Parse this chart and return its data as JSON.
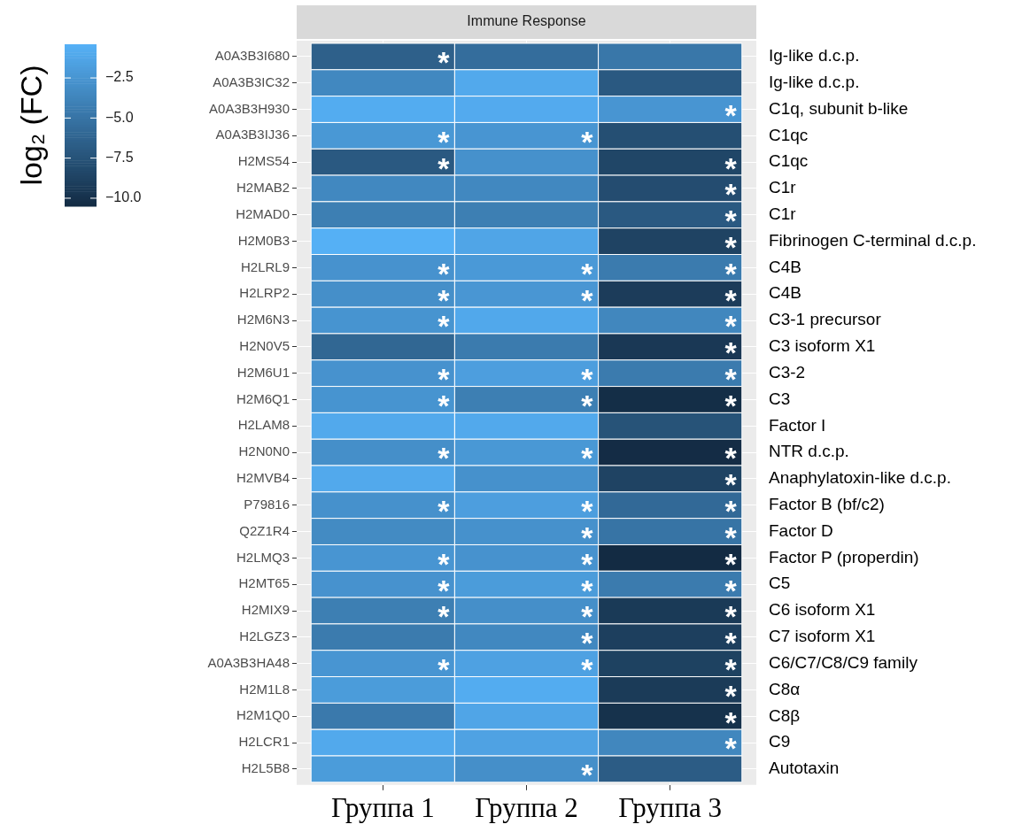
{
  "chart_data": {
    "type": "heatmap",
    "grid": true,
    "title": "Immune Response",
    "clabel": "log₂ (FC)",
    "categories": [
      "Группа 1",
      "Группа 2",
      "Группа 3"
    ],
    "y_categories": [
      "A0A3B3I680",
      "A0A3B3IC32",
      "A0A3B3H930",
      "A0A3B3IJ36",
      "H2MS54",
      "H2MAB2",
      "H2MAD0",
      "H2M0B3",
      "H2LRL9",
      "H2LRP2",
      "H2M6N3",
      "H2N0V5",
      "H2M6U1",
      "H2M6Q1",
      "H2LAM8",
      "H2N0N0",
      "H2MVB4",
      "P79816",
      "Q2Z1R4",
      "H2LMQ3",
      "H2MT65",
      "H2MIX9",
      "H2LGZ3",
      "A0A3B3HA48",
      "H2M1L8",
      "H2M1Q0",
      "H2LCR1",
      "H2L5B8"
    ],
    "y2_categories": [
      "Ig-like d.c.p.",
      "Ig-like d.c.p.",
      "C1q, subunit b-like",
      "C1qc",
      "C1qc",
      "C1r",
      "C1r",
      "Fibrinogen C-terminal d.c.p.",
      "C4B",
      "C4B",
      "C3-1 precursor",
      "C3 isoform X1",
      "C3-2",
      "C3",
      "Factor I",
      "NTR d.c.p.",
      "Anaphylatoxin-like d.c.p.",
      "Factor B (bf/c2)",
      "Factor D",
      "Factor P (properdin)",
      "C5",
      "C6 isoform X1",
      "C7 isoform X1",
      "C6/C7/C8/C9 family",
      "C8α",
      "C8β",
      "C9",
      "Autotaxin"
    ],
    "cells": [
      [
        -6.5,
        -5.5,
        -4.8
      ],
      [
        -3.5,
        -1.0,
        -7.0
      ],
      [
        -0.8,
        -0.9,
        -2.5
      ],
      [
        -2.3,
        -2.5,
        -7.8
      ],
      [
        -7.0,
        -2.8,
        -8.5
      ],
      [
        -3.5,
        -3.5,
        -8.0
      ],
      [
        -4.2,
        -4.2,
        -7.0
      ],
      [
        -0.5,
        -1.3,
        -8.7
      ],
      [
        -2.7,
        -2.2,
        -4.5
      ],
      [
        -3.0,
        -2.4,
        -9.2
      ],
      [
        -2.6,
        -1.1,
        -3.6
      ],
      [
        -6.0,
        -4.5,
        -9.5
      ],
      [
        -2.7,
        -1.8,
        -4.5
      ],
      [
        -2.6,
        -4.2,
        -10.3
      ],
      [
        -1.0,
        -1.0,
        -7.5
      ],
      [
        -3.0,
        -2.3,
        -10.4
      ],
      [
        -1.0,
        -2.8,
        -8.7
      ],
      [
        -2.8,
        -1.8,
        -5.8
      ],
      [
        -3.3,
        -2.8,
        -5.0
      ],
      [
        -2.5,
        -2.7,
        -10.5
      ],
      [
        -2.7,
        -2.0,
        -4.5
      ],
      [
        -4.2,
        -3.0,
        -9.4
      ],
      [
        -4.5,
        -3.5,
        -9.0
      ],
      [
        -2.5,
        -1.6,
        -8.8
      ],
      [
        -2.0,
        -0.8,
        -9.3
      ],
      [
        -4.6,
        -1.3,
        -10.0
      ],
      [
        -1.0,
        -1.5,
        -3.6
      ],
      [
        -2.0,
        -3.0,
        -6.8
      ]
    ],
    "cell_labels": [
      [
        "*",
        null,
        null
      ],
      [
        null,
        null,
        null
      ],
      [
        null,
        null,
        "*"
      ],
      [
        "*",
        "*",
        null
      ],
      [
        "*",
        null,
        "*"
      ],
      [
        null,
        null,
        "*"
      ],
      [
        null,
        null,
        "*"
      ],
      [
        null,
        null,
        "*"
      ],
      [
        "*",
        "*",
        "*"
      ],
      [
        "*",
        "*",
        "*"
      ],
      [
        "*",
        null,
        "*"
      ],
      [
        null,
        null,
        "*"
      ],
      [
        "*",
        "*",
        "*"
      ],
      [
        "*",
        "*",
        "*"
      ],
      [
        null,
        null,
        null
      ],
      [
        "*",
        "*",
        "*"
      ],
      [
        null,
        null,
        "*"
      ],
      [
        "*",
        "*",
        "*"
      ],
      [
        null,
        "*",
        "*"
      ],
      [
        "*",
        "*",
        "*"
      ],
      [
        "*",
        "*",
        "*"
      ],
      [
        "*",
        "*",
        "*"
      ],
      [
        null,
        "*",
        "*"
      ],
      [
        "*",
        "*",
        "*"
      ],
      [
        null,
        null,
        "*"
      ],
      [
        null,
        null,
        "*"
      ],
      [
        null,
        null,
        "*"
      ],
      [
        null,
        "*",
        null
      ]
    ],
    "clim": [
      -10.5,
      -0.4
    ],
    "cticks": [
      {
        "value": -2.5,
        "label": "−2.5"
      },
      {
        "value": -5,
        "label": "−5.0"
      },
      {
        "value": -7.5,
        "label": "−7.5"
      },
      {
        "value": -10,
        "label": "−10.0"
      }
    ]
  }
}
